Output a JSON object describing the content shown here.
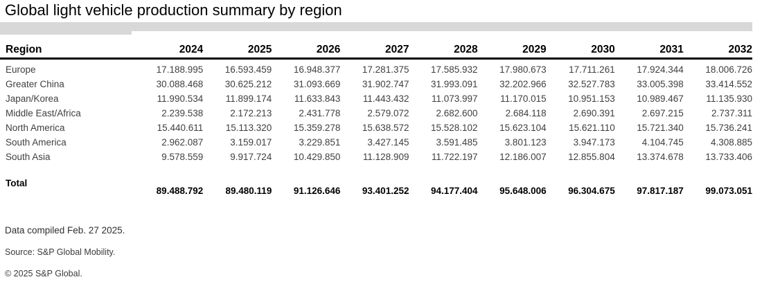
{
  "title": "Global light vehicle production summary by region",
  "chart_data": {
    "type": "table",
    "title": "Global light vehicle production summary by region",
    "region_column_header": "Region",
    "years": [
      "2024",
      "2025",
      "2026",
      "2027",
      "2028",
      "2029",
      "2030",
      "2031",
      "2032"
    ],
    "series": [
      {
        "name": "Europe",
        "values": [
          17188995,
          16593459,
          16948377,
          17281375,
          17585932,
          17980673,
          17711261,
          17924344,
          18006726
        ]
      },
      {
        "name": "Greater China",
        "values": [
          30088468,
          30625212,
          31093669,
          31902747,
          31993091,
          32202966,
          32527783,
          33005398,
          33414552
        ]
      },
      {
        "name": "Japan/Korea",
        "values": [
          11990534,
          11899174,
          11633843,
          11443432,
          11073997,
          11170015,
          10951153,
          10989467,
          11135930
        ]
      },
      {
        "name": "Middle East/Africa",
        "values": [
          2239538,
          2172213,
          2431778,
          2579072,
          2682600,
          2684118,
          2690391,
          2697215,
          2737311
        ]
      },
      {
        "name": "North America",
        "values": [
          15440611,
          15113320,
          15359278,
          15638572,
          15528102,
          15623104,
          15621110,
          15721340,
          15736241
        ]
      },
      {
        "name": "South America",
        "values": [
          2962087,
          3159017,
          3229851,
          3427145,
          3591485,
          3801123,
          3947173,
          4104745,
          4308885
        ]
      },
      {
        "name": "South Asia",
        "values": [
          9578559,
          9917724,
          10429850,
          11128909,
          11722197,
          12186007,
          12855804,
          13374678,
          13733406
        ]
      }
    ],
    "total": {
      "name": "Total",
      "values": [
        89488792,
        89480119,
        91126646,
        93401252,
        94177404,
        95648006,
        96304675,
        97817187,
        99073051
      ]
    },
    "number_format": "thousands separated by periods",
    "layout": {
      "grid": "off",
      "header_rule": "3px solid black",
      "value_alignment": "right"
    }
  },
  "footer": {
    "compiled": "Data compiled Feb. 27 2025.",
    "source": "Source: S&P Global Mobility.",
    "copyright": "© 2025 S&P Global."
  },
  "colors": {
    "header_band": "#d8d8d8",
    "header_rule": "#000000",
    "data_text": "#3f3f3f",
    "heading_text": "#000000"
  }
}
